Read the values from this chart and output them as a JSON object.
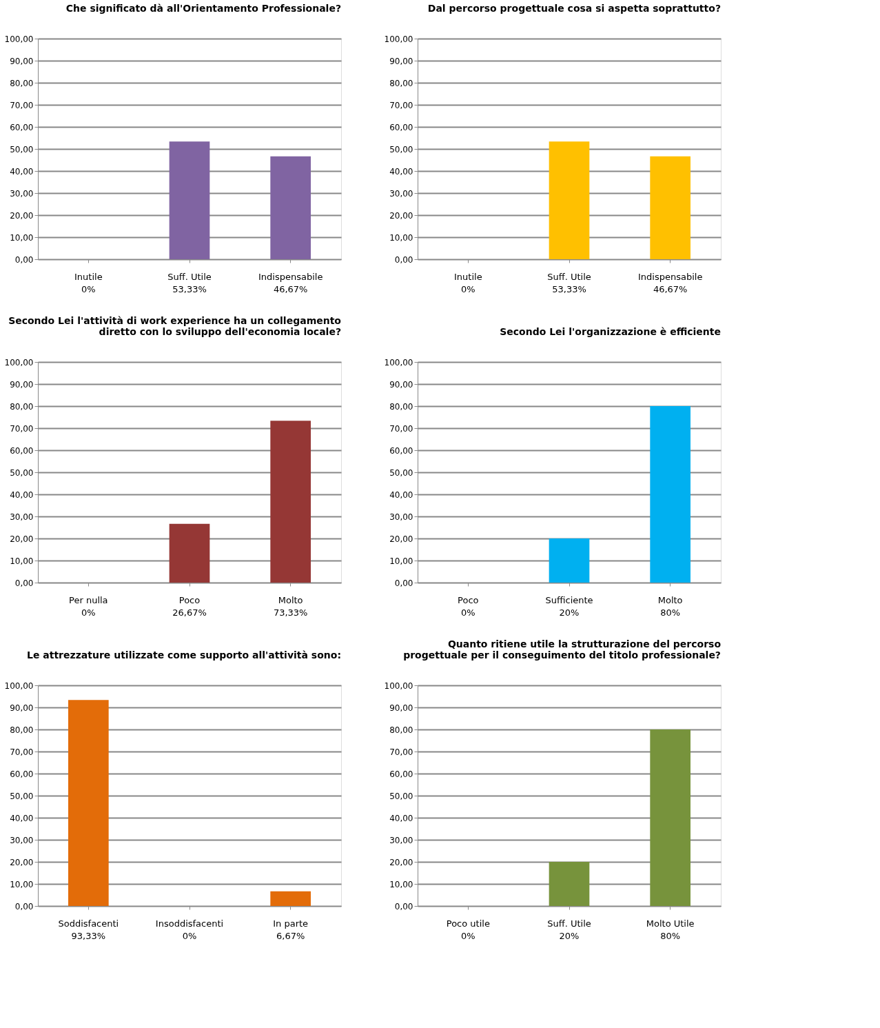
{
  "chart_data": [
    {
      "type": "bar",
      "title": "Che significato dà all'Orientamento Professionale?",
      "categories": [
        "Inutile",
        "Suff. Utile",
        "Indispensabile"
      ],
      "values": [
        0,
        53.33,
        46.67
      ],
      "value_labels": [
        "0%",
        "53,33%",
        "46,67%"
      ],
      "color": "#8064a2",
      "ylim": [
        0,
        100
      ],
      "yticks": [
        {
          "value": 0,
          "label": "0,00"
        },
        {
          "value": 10,
          "label": "10,00"
        },
        {
          "value": 20,
          "label": "20,00"
        },
        {
          "value": 30,
          "label": "30,00"
        },
        {
          "value": 40,
          "label": "40,00"
        },
        {
          "value": 50,
          "label": "50,00"
        },
        {
          "value": 60,
          "label": "60,00"
        },
        {
          "value": 70,
          "label": "70,00"
        },
        {
          "value": 80,
          "label": "80,00"
        },
        {
          "value": 90,
          "label": "90,00"
        },
        {
          "value": 100,
          "label": "100,00"
        }
      ],
      "grid": "y"
    },
    {
      "type": "bar",
      "title": "Dal percorso progettuale cosa si aspetta soprattutto?",
      "categories": [
        "Inutile",
        "Suff. Utile",
        "Indispensabile"
      ],
      "values": [
        0,
        53.33,
        46.67
      ],
      "value_labels": [
        "0%",
        "53,33%",
        "46,67%"
      ],
      "color": "#ffc000",
      "ylim": [
        0,
        100
      ],
      "yticks": [
        {
          "value": 0,
          "label": "0,00"
        },
        {
          "value": 10,
          "label": "10,00"
        },
        {
          "value": 20,
          "label": "20,00"
        },
        {
          "value": 30,
          "label": "30,00"
        },
        {
          "value": 40,
          "label": "40,00"
        },
        {
          "value": 50,
          "label": "50,00"
        },
        {
          "value": 60,
          "label": "60,00"
        },
        {
          "value": 70,
          "label": "70,00"
        },
        {
          "value": 80,
          "label": "80,00"
        },
        {
          "value": 90,
          "label": "90,00"
        },
        {
          "value": 100,
          "label": "100,00"
        }
      ],
      "grid": "y"
    },
    {
      "type": "bar",
      "title": "Secondo Lei l'attività di work experience ha un collegamento\ndiretto con lo sviluppo dell'economia locale?",
      "categories": [
        "Per nulla",
        "Poco",
        "Molto"
      ],
      "values": [
        0,
        26.67,
        73.33
      ],
      "value_labels": [
        "0%",
        "26,67%",
        "73,33%"
      ],
      "color": "#953735",
      "ylim": [
        0,
        100
      ],
      "yticks": [
        {
          "value": 0,
          "label": "0,00"
        },
        {
          "value": 10,
          "label": "10,00"
        },
        {
          "value": 20,
          "label": "20,00"
        },
        {
          "value": 30,
          "label": "30,00"
        },
        {
          "value": 40,
          "label": "40,00"
        },
        {
          "value": 50,
          "label": "50,00"
        },
        {
          "value": 60,
          "label": "60,00"
        },
        {
          "value": 70,
          "label": "70,00"
        },
        {
          "value": 80,
          "label": "80,00"
        },
        {
          "value": 90,
          "label": "90,00"
        },
        {
          "value": 100,
          "label": "100,00"
        }
      ],
      "grid": "y"
    },
    {
      "type": "bar",
      "title": "Secondo Lei l'organizzazione è efficiente",
      "categories": [
        "Poco",
        "Sufficiente",
        "Molto"
      ],
      "values": [
        0,
        20,
        80
      ],
      "value_labels": [
        "0%",
        "20%",
        "80%"
      ],
      "color": "#00b0f0",
      "ylim": [
        0,
        100
      ],
      "yticks": [
        {
          "value": 0,
          "label": "0,00"
        },
        {
          "value": 10,
          "label": "10,00"
        },
        {
          "value": 20,
          "label": "20,00"
        },
        {
          "value": 30,
          "label": "30,00"
        },
        {
          "value": 40,
          "label": "40,00"
        },
        {
          "value": 50,
          "label": "50,00"
        },
        {
          "value": 60,
          "label": "60,00"
        },
        {
          "value": 70,
          "label": "70,00"
        },
        {
          "value": 80,
          "label": "80,00"
        },
        {
          "value": 90,
          "label": "90,00"
        },
        {
          "value": 100,
          "label": "100,00"
        }
      ],
      "grid": "y"
    },
    {
      "type": "bar",
      "title": "Le attrezzature utilizzate come supporto all'attività sono:",
      "categories": [
        "Soddisfacenti",
        "Insoddisfacenti",
        "In parte"
      ],
      "values": [
        93.33,
        0,
        6.67
      ],
      "value_labels": [
        "93,33%",
        "0%",
        "6,67%"
      ],
      "color": "#e36c09",
      "ylim": [
        0,
        100
      ],
      "yticks": [
        {
          "value": 0,
          "label": "0,00"
        },
        {
          "value": 10,
          "label": "10,00"
        },
        {
          "value": 20,
          "label": "20,00"
        },
        {
          "value": 30,
          "label": "30,00"
        },
        {
          "value": 40,
          "label": "40,00"
        },
        {
          "value": 50,
          "label": "50,00"
        },
        {
          "value": 60,
          "label": "60,00"
        },
        {
          "value": 70,
          "label": "70,00"
        },
        {
          "value": 80,
          "label": "80,00"
        },
        {
          "value": 90,
          "label": "90,00"
        },
        {
          "value": 100,
          "label": "100,00"
        }
      ],
      "grid": "y"
    },
    {
      "type": "bar",
      "title": "Quanto ritiene utile la strutturazione del percorso\nprogettuale per il conseguimento del titolo professionale?",
      "categories": [
        "Poco utile",
        "Suff. Utile",
        "Molto Utile"
      ],
      "values": [
        0,
        20,
        80
      ],
      "value_labels": [
        "0%",
        "20%",
        "80%"
      ],
      "color": "#77933c",
      "ylim": [
        0,
        100
      ],
      "yticks": [
        {
          "value": 0,
          "label": "0,00"
        },
        {
          "value": 10,
          "label": "10,00"
        },
        {
          "value": 20,
          "label": "20,00"
        },
        {
          "value": 30,
          "label": "30,00"
        },
        {
          "value": 40,
          "label": "40,00"
        },
        {
          "value": 50,
          "label": "50,00"
        },
        {
          "value": 60,
          "label": "60,00"
        },
        {
          "value": 70,
          "label": "70,00"
        },
        {
          "value": 80,
          "label": "80,00"
        },
        {
          "value": 90,
          "label": "90,00"
        },
        {
          "value": 100,
          "label": "100,00"
        }
      ],
      "grid": "y"
    }
  ]
}
